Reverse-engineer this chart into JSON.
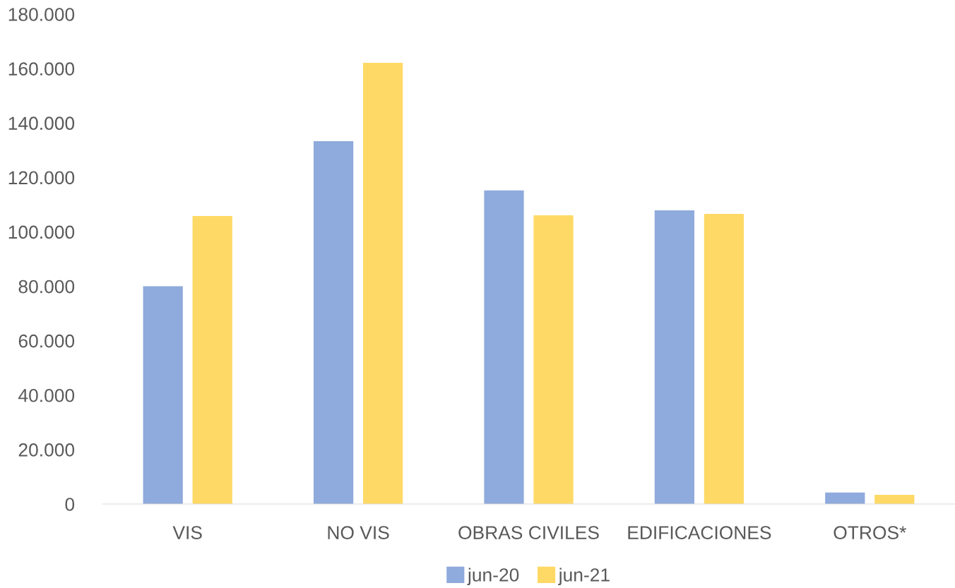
{
  "chart_data": {
    "type": "bar",
    "categories": [
      "VIS",
      "NO VIS",
      "OBRAS CIVILES",
      "EDIFICACIONES",
      "OTROS*"
    ],
    "series": [
      {
        "name": "jun-20",
        "color": "#8faadc",
        "values": [
          80000,
          133300,
          115200,
          107900,
          4200
        ]
      },
      {
        "name": "jun-21",
        "color": "#ffd966",
        "values": [
          105800,
          162100,
          106100,
          106600,
          3400
        ]
      }
    ],
    "ylim": [
      0,
      180000
    ],
    "yticks": [
      {
        "value": 0,
        "label": "0"
      },
      {
        "value": 20000,
        "label": "20.000"
      },
      {
        "value": 40000,
        "label": "40.000"
      },
      {
        "value": 60000,
        "label": "60.000"
      },
      {
        "value": 80000,
        "label": "80.000"
      },
      {
        "value": 100000,
        "label": "100.000"
      },
      {
        "value": 120000,
        "label": "120.000"
      },
      {
        "value": 140000,
        "label": "140.000"
      },
      {
        "value": 160000,
        "label": "160.000"
      },
      {
        "value": 180000,
        "label": "180.000"
      }
    ],
    "grid": false,
    "legend": "bottom"
  }
}
